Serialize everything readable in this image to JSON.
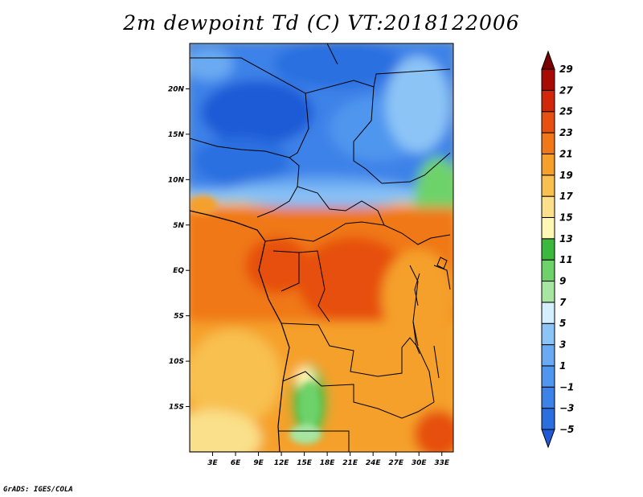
{
  "title": "2m dewpoint Td (C) VT:2018122006",
  "credit": "GrADS: IGES/COLA",
  "map": {
    "lon_range": [
      0,
      34.5
    ],
    "lat_range": [
      -20,
      25
    ],
    "lon_ticks": [
      {
        "value": 3,
        "label": "3E"
      },
      {
        "value": 6,
        "label": "6E"
      },
      {
        "value": 9,
        "label": "9E"
      },
      {
        "value": 12,
        "label": "12E"
      },
      {
        "value": 15,
        "label": "15E"
      },
      {
        "value": 18,
        "label": "18E"
      },
      {
        "value": 21,
        "label": "21E"
      },
      {
        "value": 24,
        "label": "24E"
      },
      {
        "value": 27,
        "label": "27E"
      },
      {
        "value": 30,
        "label": "30E"
      },
      {
        "value": 33,
        "label": "33E"
      }
    ],
    "lat_ticks": [
      {
        "value": 20,
        "label": "20N"
      },
      {
        "value": 15,
        "label": "15N"
      },
      {
        "value": 10,
        "label": "10N"
      },
      {
        "value": 5,
        "label": "5N"
      },
      {
        "value": 0,
        "label": "EQ"
      },
      {
        "value": -5,
        "label": "5S"
      },
      {
        "value": -10,
        "label": "10S"
      },
      {
        "value": -15,
        "label": "15S"
      }
    ]
  },
  "colorbar": {
    "levels": [
      "-5",
      "-3",
      "-1",
      "1",
      "3",
      "5",
      "7",
      "9",
      "11",
      "13",
      "15",
      "17",
      "19",
      "21",
      "23",
      "25",
      "27",
      "29"
    ],
    "colors": [
      "#1e5ad6",
      "#2a6fe0",
      "#3c82e8",
      "#5096ee",
      "#6aaaf2",
      "#8cc4f6",
      "#d4f0ff",
      "#a6e6a2",
      "#6ed26a",
      "#3cb83c",
      "#fff8b4",
      "#fae08a",
      "#f8c050",
      "#f5a02a",
      "#f07818",
      "#e65010",
      "#d02808",
      "#a80a04",
      "#780000"
    ]
  }
}
